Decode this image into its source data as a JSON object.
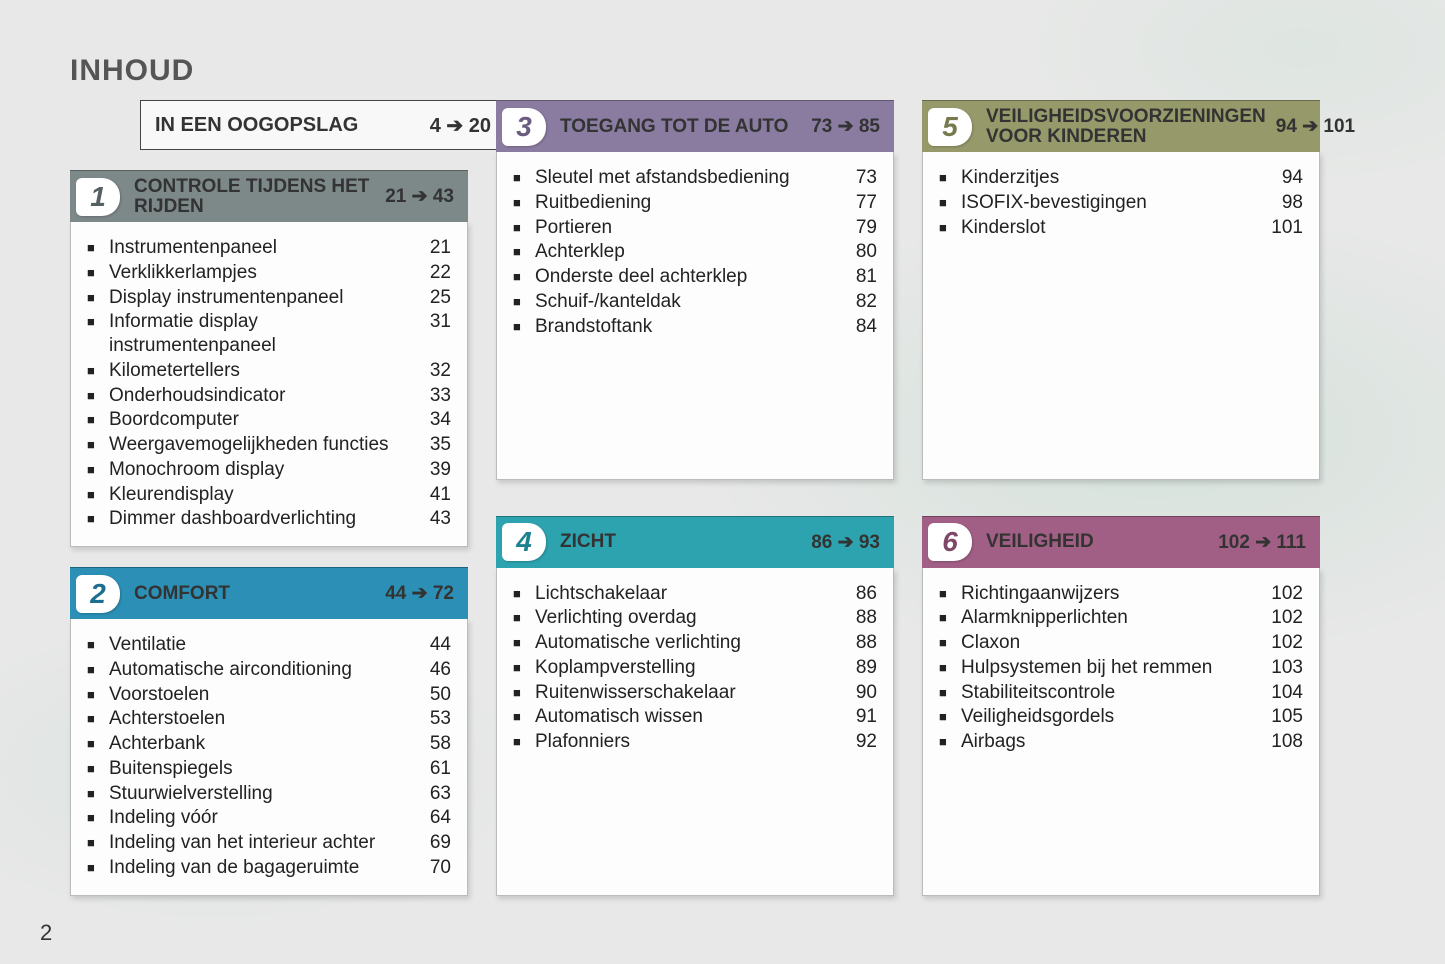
{
  "page_title": "INHOUD",
  "page_number": "2",
  "arrow_glyph": "➔",
  "intro": {
    "label": "IN EEN OOGOPSLAG",
    "from": "4",
    "to": "20"
  },
  "section_body_min_heights": {
    "s3": 328,
    "s4": 328,
    "s5": 328,
    "s6": 328
  },
  "sections": {
    "s1": {
      "num": "1",
      "title": "CONTROLE TIJDENS HET RIJDEN",
      "from": "21",
      "to": "43",
      "header_bg": "#7d8889",
      "badge_color": "#546061",
      "items": [
        {
          "label": "Instrumentenpaneel",
          "page": "21"
        },
        {
          "label": "Verklikkerlampjes",
          "page": "22"
        },
        {
          "label": "Display instrumentenpaneel",
          "page": "25"
        },
        {
          "label": "Informatie display instrumentenpaneel",
          "page": "31"
        },
        {
          "label": "Kilometertellers",
          "page": "32"
        },
        {
          "label": "Onderhoudsindicator",
          "page": "33"
        },
        {
          "label": "Boordcomputer",
          "page": "34"
        },
        {
          "label": "Weergavemogelijkheden functies",
          "page": "35"
        },
        {
          "label": "Monochroom display",
          "page": "39"
        },
        {
          "label": "Kleurendisplay",
          "page": "41"
        },
        {
          "label": "Dimmer dashboardverlichting",
          "page": "43"
        }
      ]
    },
    "s2": {
      "num": "2",
      "title": "COMFORT",
      "from": "44",
      "to": "72",
      "header_bg": "#2c8fb5",
      "badge_color": "#1d6f8f",
      "items": [
        {
          "label": "Ventilatie",
          "page": "44"
        },
        {
          "label": "Automatische airconditioning",
          "page": "46"
        },
        {
          "label": "Voorstoelen",
          "page": "50"
        },
        {
          "label": "Achterstoelen",
          "page": "53"
        },
        {
          "label": "Achterbank",
          "page": "58"
        },
        {
          "label": "Buitenspiegels",
          "page": "61"
        },
        {
          "label": "Stuurwielverstelling",
          "page": "63"
        },
        {
          "label": "Indeling vóór",
          "page": "64"
        },
        {
          "label": "Indeling van het interieur achter",
          "page": "69"
        },
        {
          "label": "Indeling van de bagageruimte",
          "page": "70"
        }
      ]
    },
    "s3": {
      "num": "3",
      "title": "TOEGANG TOT DE AUTO",
      "from": "73",
      "to": "85",
      "header_bg": "#8a7ba0",
      "badge_color": "#6a5c80",
      "items": [
        {
          "label": "Sleutel met afstandsbediening",
          "page": "73"
        },
        {
          "label": "Ruitbediening",
          "page": "77"
        },
        {
          "label": "Portieren",
          "page": "79"
        },
        {
          "label": "Achterklep",
          "page": "80"
        },
        {
          "label": "Onderste deel achterklep",
          "page": "81"
        },
        {
          "label": "Schuif-/kanteldak",
          "page": "82"
        },
        {
          "label": "Brandstoftank",
          "page": "84"
        }
      ]
    },
    "s4": {
      "num": "4",
      "title": "ZICHT",
      "from": "86",
      "to": "93",
      "header_bg": "#2da3b0",
      "badge_color": "#1d8290",
      "items": [
        {
          "label": "Lichtschakelaar",
          "page": "86"
        },
        {
          "label": "Verlichting overdag",
          "page": "88"
        },
        {
          "label": "Automatische verlichting",
          "page": "88"
        },
        {
          "label": "Koplampverstelling",
          "page": "89"
        },
        {
          "label": "Ruitenwisserschakelaar",
          "page": "90"
        },
        {
          "label": "Automatisch wissen",
          "page": "91"
        },
        {
          "label": "Plafonniers",
          "page": "92"
        }
      ]
    },
    "s5": {
      "num": "5",
      "title": "VEILIGHEIDSVOORZIENINGEN VOOR KINDEREN",
      "from": "94",
      "to": "101",
      "header_bg": "#96996a",
      "badge_color": "#767a4e",
      "items": [
        {
          "label": "Kinderzitjes",
          "page": "94"
        },
        {
          "label": "ISOFIX-bevestigingen",
          "page": "98"
        },
        {
          "label": "Kinderslot",
          "page": "101"
        }
      ]
    },
    "s6": {
      "num": "6",
      "title": "VEILIGHEID",
      "from": "102",
      "to": "111",
      "header_bg": "#a15f85",
      "badge_color": "#7e4768",
      "items": [
        {
          "label": "Richtingaanwijzers",
          "page": "102"
        },
        {
          "label": "Alarmknipperlichten",
          "page": "102"
        },
        {
          "label": "Claxon",
          "page": "102"
        },
        {
          "label": "Hulpsystemen bij het remmen",
          "page": "103"
        },
        {
          "label": "Stabiliteitscontrole",
          "page": "104"
        },
        {
          "label": "Veiligheidsgordels",
          "page": "105"
        },
        {
          "label": "Airbags",
          "page": "108"
        }
      ]
    }
  }
}
